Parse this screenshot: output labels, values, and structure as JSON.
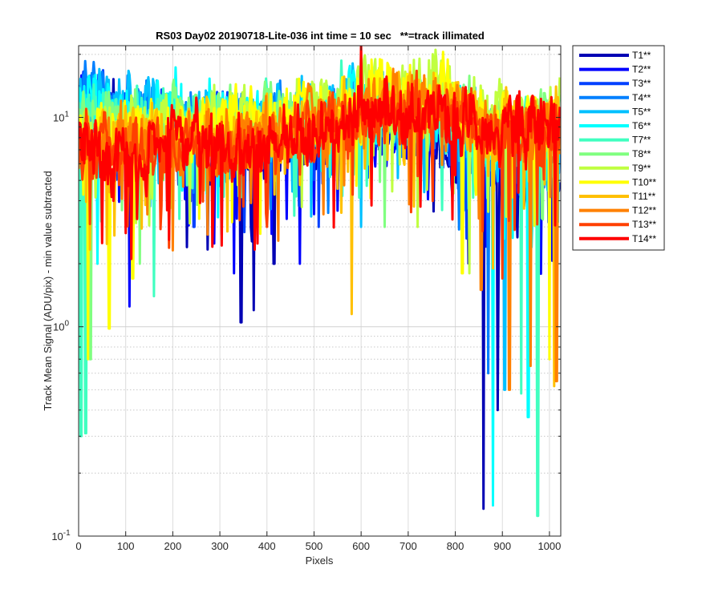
{
  "chart_data": {
    "type": "line",
    "title": "RS03 Day02 20190718-Lite-036 int time = 10 sec   **=track illimated",
    "xlabel": "Pixels",
    "ylabel": "Track Mean Signal (ADU/pix) - min value subtracted",
    "x_scale": "linear",
    "y_scale": "log",
    "xlim": [
      0,
      1024
    ],
    "ylim": [
      0.1,
      22
    ],
    "x_ticks": [
      0,
      100,
      200,
      300,
      400,
      500,
      600,
      700,
      800,
      900,
      1000
    ],
    "x_tick_labels": [
      "0",
      "100",
      "200",
      "300",
      "400",
      "500",
      "600",
      "700",
      "800",
      "900",
      "1000"
    ],
    "y_ticks": [
      0.1,
      1,
      10
    ],
    "y_tick_labels": [
      {
        "base": "10",
        "exp": "-1"
      },
      {
        "base": "10",
        "exp": "0"
      },
      {
        "base": "10",
        "exp": "1"
      }
    ],
    "grid": true,
    "minor_grid": "dotted",
    "legend_position": "outside-right-top",
    "profile_x": [
      0,
      50,
      100,
      150,
      200,
      250,
      300,
      350,
      400,
      450,
      500,
      550,
      600,
      650,
      700,
      750,
      800,
      850,
      900,
      950,
      1000,
      1024
    ],
    "series": [
      {
        "name": "T1**",
        "color": "#0000b4",
        "level": [
          10.5,
          10,
          9,
          8.5,
          8,
          7.5,
          7.5,
          7,
          7,
          7.5,
          8,
          8.5,
          8.5,
          8,
          8,
          8,
          7,
          6,
          5,
          5,
          5.5,
          6
        ],
        "dips": [
          [
            160,
            2.5
          ],
          [
            230,
            2.4
          ],
          [
            345,
            1.05
          ],
          [
            372,
            1.2
          ],
          [
            415,
            2.0
          ],
          [
            860,
            0.135
          ],
          [
            890,
            0.4
          ]
        ]
      },
      {
        "name": "T2**",
        "color": "#0000ff",
        "level": [
          11,
          10.5,
          9.5,
          9,
          8.5,
          8,
          8,
          7.5,
          7.5,
          8,
          8.5,
          9,
          9,
          8.5,
          8.5,
          8.5,
          7.5,
          6.5,
          5.5,
          5.5,
          6,
          6.5
        ],
        "dips": [
          [
            108,
            1.25
          ],
          [
            287,
            2.5
          ],
          [
            330,
            1.8
          ],
          [
            470,
            2.0
          ]
        ]
      },
      {
        "name": "T3**",
        "color": "#0040ff",
        "level": [
          12,
          11.5,
          10.5,
          10,
          9.5,
          9,
          9,
          8.5,
          8.5,
          9,
          9.5,
          10,
          10,
          9.5,
          9.5,
          9.5,
          8.5,
          7,
          6,
          6,
          6.5,
          7
        ],
        "dips": [
          [
            245,
            3.0
          ],
          [
            510,
            3.0
          ]
        ]
      },
      {
        "name": "T4**",
        "color": "#0080ff",
        "level": [
          12.5,
          12,
          11,
          10.5,
          10,
          9.5,
          9.5,
          9,
          9,
          9.5,
          10,
          10.5,
          10.5,
          10,
          10,
          10,
          9,
          7.5,
          6.5,
          6.5,
          7,
          7.5
        ],
        "dips": [
          [
            530,
            3.5
          ],
          [
            870,
            0.6
          ]
        ]
      },
      {
        "name": "T5**",
        "color": "#00c0ff",
        "level": [
          12,
          11.5,
          11,
          10.5,
          10,
          10,
          10,
          9.5,
          9.5,
          10,
          10.5,
          11,
          11,
          10.5,
          10.5,
          10.5,
          9.5,
          8,
          7,
          7,
          7.5,
          8
        ],
        "dips": [
          [
            600,
            3.0
          ],
          [
            905,
            0.5
          ]
        ]
      },
      {
        "name": "T6**",
        "color": "#00ffff",
        "level": [
          11.5,
          11,
          10.5,
          10,
          10,
          10,
          10,
          9.5,
          9.5,
          10,
          10.5,
          11,
          11,
          10.5,
          10.5,
          10.5,
          9.5,
          8.5,
          7.5,
          7.5,
          8,
          8.5
        ],
        "dips": [
          [
            40,
            2.0
          ],
          [
            880,
            0.14
          ],
          [
            955,
            0.37
          ]
        ]
      },
      {
        "name": "T7**",
        "color": "#40ffc0",
        "level": [
          10.5,
          10,
          9.5,
          9.5,
          9.5,
          9.5,
          9.5,
          9,
          9,
          9.5,
          10,
          10.5,
          10.5,
          10,
          10,
          10,
          9,
          8.5,
          8,
          8,
          8.5,
          9
        ],
        "dips": [
          [
            5,
            0.3
          ],
          [
            15,
            0.31
          ],
          [
            160,
            1.4
          ],
          [
            940,
            0.48
          ],
          [
            975,
            0.125
          ]
        ]
      },
      {
        "name": "T8**",
        "color": "#80ff80",
        "level": [
          9.5,
          9.5,
          9.5,
          9.5,
          9.5,
          9.5,
          9.5,
          9.5,
          9.5,
          10,
          10.5,
          11,
          12,
          12.5,
          12.5,
          12.5,
          11,
          10,
          9,
          9,
          9.5,
          10
        ],
        "dips": [
          [
            25,
            0.7
          ],
          [
            130,
            2.0
          ],
          [
            650,
            3.0
          ]
        ]
      },
      {
        "name": "T9**",
        "color": "#c0ff40",
        "level": [
          8.5,
          9,
          9,
          9,
          9,
          9,
          9.5,
          9.5,
          9.5,
          10,
          11,
          12,
          13.5,
          14.5,
          14,
          14,
          12.5,
          11,
          10,
          10,
          10.5,
          11
        ],
        "dips": [
          [
            720,
            3.0
          ],
          [
            830,
            1.8
          ]
        ]
      },
      {
        "name": "T10**",
        "color": "#ffff00",
        "level": [
          8,
          8.5,
          8.5,
          8.5,
          8.5,
          8.5,
          9,
          9,
          9,
          9.5,
          10,
          11,
          12,
          13,
          13,
          13,
          12,
          10.5,
          9.5,
          9.5,
          10,
          10.5
        ],
        "dips": [
          [
            20,
            0.7
          ],
          [
            65,
            0.98
          ],
          [
            115,
            1.7
          ],
          [
            815,
            1.8
          ],
          [
            1000,
            0.7
          ]
        ]
      },
      {
        "name": "T11**",
        "color": "#ffc000",
        "level": [
          7.5,
          8,
          8,
          8,
          8,
          8,
          8.5,
          8.5,
          8.5,
          9,
          9.5,
          10,
          11,
          12,
          12,
          12,
          11,
          10,
          9,
          9,
          9.5,
          10
        ],
        "dips": [
          [
            580,
            1.15
          ],
          [
            880,
            1.9
          ],
          [
            1010,
            0.52
          ]
        ]
      },
      {
        "name": "T12**",
        "color": "#ff8000",
        "level": [
          7,
          7.5,
          7.5,
          7.5,
          7.5,
          7.5,
          8,
          8,
          8,
          8.5,
          9,
          9.5,
          10.5,
          11.5,
          11.5,
          11.5,
          10.5,
          9.5,
          8.5,
          8.5,
          9,
          9.5
        ],
        "dips": [
          [
            855,
            1.5
          ],
          [
            915,
            0.5
          ],
          [
            960,
            0.65
          ],
          [
            1015,
            0.55
          ]
        ]
      },
      {
        "name": "T13**",
        "color": "#ff4000",
        "level": [
          7,
          7,
          7,
          7,
          7,
          7.5,
          7.5,
          7.5,
          7.5,
          8,
          8.5,
          9,
          10,
          11,
          11,
          11,
          10,
          9,
          8.5,
          8.5,
          8.5,
          9
        ],
        "dips": [
          [
            400,
            3.0
          ],
          [
            900,
            1.7
          ]
        ]
      },
      {
        "name": "T14**",
        "color": "#ff0000",
        "level": [
          7,
          7,
          7,
          7,
          7.5,
          7.5,
          7.5,
          7.5,
          7.5,
          8,
          8.5,
          9,
          10,
          11,
          10.5,
          10.5,
          10,
          9,
          8.5,
          8.5,
          8.5,
          9
        ],
        "dips": [
          [
            100,
            2.8
          ],
          [
            600,
            22
          ],
          [
            380,
            2.5
          ]
        ]
      }
    ]
  }
}
